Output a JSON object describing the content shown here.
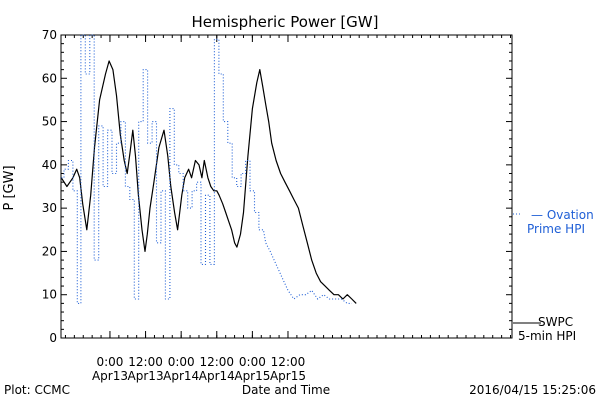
{
  "chart_data": {
    "type": "line",
    "title": "Hemispheric Power [GW]",
    "ylabel": "P [GW]",
    "xlabel": "Date and Time",
    "ylim": [
      0,
      70
    ],
    "yticks": [
      0,
      10,
      20,
      30,
      40,
      50,
      60,
      70
    ],
    "xlim_hours": [
      -16.5,
      135.5
    ],
    "x_axis_start_label": "Apr12 ~07:30",
    "xticks": [
      {
        "hour": 0,
        "time": "0:00",
        "date": "Apr13"
      },
      {
        "hour": 12,
        "time": "12:00",
        "date": "Apr13"
      },
      {
        "hour": 24,
        "time": "0:00",
        "date": "Apr14"
      },
      {
        "hour": 36,
        "time": "12:00",
        "date": "Apr14"
      },
      {
        "hour": 48,
        "time": "0:00",
        "date": "Apr15"
      },
      {
        "hour": 60,
        "time": "12:00",
        "date": "Apr15"
      }
    ],
    "x_unit": "hours relative to Apr13 0:00",
    "grid": false,
    "series": [
      {
        "name": "SWPC 5-min HPI",
        "style": "solid",
        "color": "#000000",
        "points": [
          [
            -16.4,
            37
          ],
          [
            -14.5,
            35
          ],
          [
            -12.5,
            37
          ],
          [
            -11.2,
            39
          ],
          [
            -10.2,
            37
          ],
          [
            -9.2,
            31
          ],
          [
            -7.8,
            25
          ],
          [
            -6.5,
            33
          ],
          [
            -5.2,
            44
          ],
          [
            -3.5,
            55
          ],
          [
            -1.5,
            61
          ],
          [
            -0.3,
            64
          ],
          [
            1.0,
            62
          ],
          [
            2.2,
            56
          ],
          [
            3.5,
            47
          ],
          [
            4.8,
            41
          ],
          [
            5.8,
            38
          ],
          [
            6.8,
            43
          ],
          [
            7.7,
            48
          ],
          [
            8.6,
            42
          ],
          [
            9.6,
            33
          ],
          [
            10.8,
            25
          ],
          [
            11.8,
            20
          ],
          [
            12.6,
            24
          ],
          [
            13.5,
            30
          ],
          [
            14.8,
            36
          ],
          [
            16.5,
            44
          ],
          [
            18.2,
            48
          ],
          [
            19.5,
            42
          ],
          [
            20.5,
            35
          ],
          [
            21.8,
            29
          ],
          [
            22.8,
            25
          ],
          [
            24.2,
            33
          ],
          [
            25.2,
            37
          ],
          [
            26.5,
            39
          ],
          [
            27.5,
            37
          ],
          [
            28.8,
            41
          ],
          [
            30.0,
            40
          ],
          [
            31.0,
            37
          ],
          [
            31.8,
            41
          ],
          [
            33.0,
            37
          ],
          [
            34.0,
            35
          ],
          [
            35.0,
            34
          ],
          [
            36.0,
            34
          ],
          [
            36.8,
            33
          ],
          [
            38.0,
            31
          ],
          [
            39.0,
            29
          ],
          [
            40.0,
            27
          ],
          [
            41.0,
            25
          ],
          [
            42.0,
            22
          ],
          [
            42.8,
            21
          ],
          [
            44.0,
            24
          ],
          [
            45.0,
            29
          ],
          [
            46.5,
            42
          ],
          [
            48.0,
            53
          ],
          [
            49.5,
            59
          ],
          [
            50.5,
            62
          ],
          [
            51.5,
            58
          ],
          [
            52.5,
            54
          ],
          [
            53.5,
            50
          ],
          [
            54.5,
            45
          ],
          [
            56.0,
            41
          ],
          [
            57.5,
            38
          ],
          [
            59.0,
            36
          ],
          [
            60.5,
            34
          ],
          [
            62.0,
            32
          ],
          [
            63.5,
            30
          ],
          [
            65.0,
            26
          ],
          [
            66.5,
            22
          ],
          [
            68.0,
            18
          ],
          [
            69.5,
            15
          ],
          [
            71.0,
            13
          ],
          [
            72.5,
            12
          ],
          [
            74.0,
            11
          ],
          [
            75.5,
            10
          ],
          [
            77.0,
            10
          ],
          [
            78.5,
            9
          ],
          [
            80.0,
            10
          ],
          [
            81.5,
            9
          ],
          [
            83.0,
            8
          ]
        ]
      },
      {
        "name": "Ovation Prime HPI",
        "style": "dotted",
        "color": "#1f5fd6",
        "points": [
          [
            -16.4,
            37
          ],
          [
            -15.5,
            37
          ],
          [
            -15.5,
            39
          ],
          [
            -14.0,
            39
          ],
          [
            -14.0,
            41
          ],
          [
            -12.5,
            41
          ],
          [
            -12.5,
            34
          ],
          [
            -11.0,
            34
          ],
          [
            -11.0,
            8
          ],
          [
            -9.8,
            8
          ],
          [
            -9.8,
            70
          ],
          [
            -8.3,
            70
          ],
          [
            -8.3,
            61
          ],
          [
            -6.8,
            61
          ],
          [
            -6.8,
            70
          ],
          [
            -5.3,
            70
          ],
          [
            -5.3,
            18
          ],
          [
            -3.8,
            18
          ],
          [
            -3.8,
            49
          ],
          [
            -2.3,
            49
          ],
          [
            -2.3,
            35
          ],
          [
            -0.8,
            35
          ],
          [
            -0.8,
            48
          ],
          [
            0.7,
            48
          ],
          [
            0.7,
            38
          ],
          [
            2.2,
            38
          ],
          [
            2.2,
            45
          ],
          [
            3.7,
            45
          ],
          [
            3.7,
            50
          ],
          [
            5.2,
            50
          ],
          [
            5.2,
            35
          ],
          [
            6.7,
            35
          ],
          [
            6.7,
            32
          ],
          [
            8.2,
            32
          ],
          [
            8.2,
            9
          ],
          [
            9.7,
            9
          ],
          [
            9.7,
            50
          ],
          [
            11.2,
            50
          ],
          [
            11.2,
            62
          ],
          [
            12.7,
            62
          ],
          [
            12.7,
            45
          ],
          [
            14.2,
            45
          ],
          [
            14.2,
            50
          ],
          [
            15.7,
            50
          ],
          [
            15.7,
            22
          ],
          [
            17.2,
            22
          ],
          [
            17.2,
            34
          ],
          [
            18.7,
            34
          ],
          [
            18.7,
            9
          ],
          [
            20.2,
            9
          ],
          [
            20.2,
            53
          ],
          [
            21.7,
            53
          ],
          [
            21.7,
            40
          ],
          [
            23.2,
            40
          ],
          [
            23.2,
            38
          ],
          [
            24.7,
            38
          ],
          [
            24.7,
            34
          ],
          [
            26.2,
            34
          ],
          [
            26.2,
            30
          ],
          [
            27.7,
            30
          ],
          [
            27.7,
            34
          ],
          [
            29.2,
            34
          ],
          [
            29.2,
            36
          ],
          [
            30.7,
            36
          ],
          [
            30.7,
            17
          ],
          [
            32.2,
            17
          ],
          [
            32.2,
            33
          ],
          [
            33.7,
            33
          ],
          [
            33.7,
            17
          ],
          [
            35.2,
            17
          ],
          [
            35.2,
            69
          ],
          [
            36.7,
            69
          ],
          [
            36.7,
            61
          ],
          [
            38.2,
            61
          ],
          [
            38.2,
            50
          ],
          [
            39.7,
            50
          ],
          [
            39.7,
            45
          ],
          [
            41.2,
            45
          ],
          [
            41.2,
            37
          ],
          [
            42.7,
            37
          ],
          [
            42.7,
            35
          ],
          [
            44.2,
            35
          ],
          [
            44.2,
            38
          ],
          [
            45.7,
            38
          ],
          [
            45.7,
            41
          ],
          [
            47.2,
            41
          ],
          [
            47.2,
            34
          ],
          [
            48.7,
            34
          ],
          [
            48.7,
            29
          ],
          [
            50.2,
            29
          ],
          [
            50.2,
            25
          ],
          [
            51.7,
            25
          ],
          [
            52.5,
            22
          ],
          [
            54.0,
            20
          ],
          [
            56.0,
            17
          ],
          [
            58.0,
            14
          ],
          [
            60.0,
            11
          ],
          [
            62.0,
            9
          ],
          [
            64.0,
            10
          ],
          [
            66.0,
            10
          ],
          [
            68.0,
            11
          ],
          [
            70.0,
            9
          ],
          [
            72.0,
            10
          ],
          [
            74.0,
            9
          ],
          [
            76.0,
            9
          ],
          [
            78.0,
            9
          ],
          [
            80.0,
            8
          ],
          [
            81.5,
            8
          ]
        ]
      }
    ]
  },
  "legend": {
    "ovation_line1": "— Ovation",
    "ovation_line2": "Prime HPI",
    "swpc_line1": "SWPC",
    "swpc_line2": "5-min HPI"
  },
  "footer": {
    "left": "Plot: CCMC",
    "center": "Date and Time",
    "right": "2016/04/15  15:25:06"
  },
  "colors": {
    "swpc": "#000000",
    "ovation": "#1f5fd6"
  }
}
